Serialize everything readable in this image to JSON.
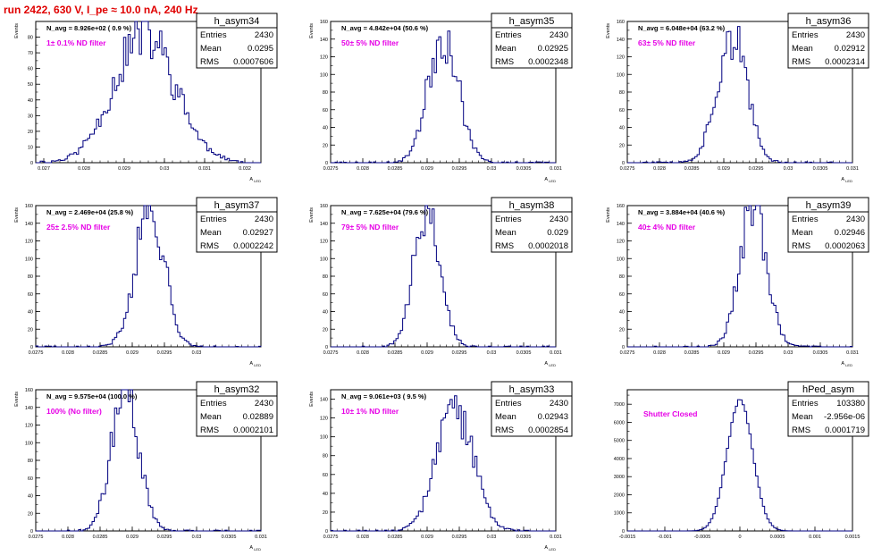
{
  "page_title": "run 2422,   630 V, I_pe ≈ 10.0 nA, 240 Hz",
  "colors": {
    "histogram": "#000080",
    "annotation": "#e600e6",
    "title": "#e00000",
    "frame": "#000000"
  },
  "chart_data": [
    {
      "type": "histogram",
      "name": "h_asym34",
      "ylabel": "Events",
      "xlabel": "A_{LED}",
      "navg": "N_avg = 8.926e+02 ( 0.9 %)",
      "filter": "1± 0.1% ND filter",
      "stats": [
        [
          "Entries",
          "2430"
        ],
        [
          "Mean",
          "0.0295"
        ],
        [
          "RMS",
          "0.0007606"
        ]
      ],
      "xlim": [
        0.0268,
        0.0324
      ],
      "ylim": [
        0,
        90
      ],
      "xticks": [
        0.027,
        0.028,
        0.029,
        0.03,
        0.031,
        0.032
      ],
      "xtick_labels": [
        "0.027",
        "0.028",
        "0.029",
        "0.03",
        "0.031",
        "0.032"
      ],
      "yticks": [
        0,
        10,
        20,
        30,
        40,
        50,
        60,
        70,
        80
      ],
      "ytick_labels": [
        "0",
        "10",
        "20",
        "30",
        "40",
        "50",
        "60",
        "70",
        "80"
      ],
      "peak": 82,
      "mean": 0.0295,
      "sigma": 0.00076,
      "seed": 11
    },
    {
      "type": "histogram",
      "name": "h_asym35",
      "ylabel": "Events",
      "xlabel": "A_{LED}",
      "navg": "N_avg = 4.842e+04 (50.6 %)",
      "filter": "50± 5% ND filter",
      "stats": [
        [
          "Entries",
          "2430"
        ],
        [
          "Mean",
          "0.02925"
        ],
        [
          "RMS",
          "0.0002348"
        ]
      ],
      "xlim": [
        0.0275,
        0.031
      ],
      "ylim": [
        0,
        160
      ],
      "xticks": [
        0.0275,
        0.028,
        0.0285,
        0.029,
        0.0295,
        0.03,
        0.0305,
        0.031
      ],
      "xtick_labels": [
        "0.0275",
        "0.028",
        "0.0285",
        "0.029",
        "0.0295",
        "0.03",
        "0.0305",
        "0.031"
      ],
      "yticks": [
        0,
        20,
        40,
        60,
        80,
        100,
        120,
        140,
        160
      ],
      "ytick_labels": [
        "0",
        "20",
        "40",
        "60",
        "80",
        "100",
        "120",
        "140",
        "160"
      ],
      "peak": 145,
      "mean": 0.02925,
      "sigma": 0.000235,
      "seed": 23
    },
    {
      "type": "histogram",
      "name": "h_asym36",
      "ylabel": "Events",
      "xlabel": "A_{LED}",
      "navg": "N_avg = 6.048e+04 (63.2 %)",
      "filter": "63± 5% ND filter",
      "stats": [
        [
          "Entries",
          "2430"
        ],
        [
          "Mean",
          "0.02912"
        ],
        [
          "RMS",
          "0.0002314"
        ]
      ],
      "xlim": [
        0.0275,
        0.031
      ],
      "ylim": [
        0,
        160
      ],
      "xticks": [
        0.0275,
        0.028,
        0.0285,
        0.029,
        0.0295,
        0.03,
        0.0305,
        0.031
      ],
      "xtick_labels": [
        "0.0275",
        "0.028",
        "0.0285",
        "0.029",
        "0.0295",
        "0.03",
        "0.0305",
        "0.031"
      ],
      "yticks": [
        0,
        20,
        40,
        60,
        80,
        100,
        120,
        140,
        160
      ],
      "ytick_labels": [
        "0",
        "20",
        "40",
        "60",
        "80",
        "100",
        "120",
        "140",
        "160"
      ],
      "peak": 146,
      "mean": 0.02912,
      "sigma": 0.00023,
      "seed": 37
    },
    {
      "type": "histogram",
      "name": "h_asym37",
      "ylabel": "Events",
      "xlabel": "A_{LED}",
      "navg": "N_avg = 2.469e+04 (25.8 %)",
      "filter": "25± 2.5% ND filter",
      "stats": [
        [
          "Entries",
          "2430"
        ],
        [
          "Mean",
          "0.02927"
        ],
        [
          "RMS",
          "0.0002242"
        ]
      ],
      "xlim": [
        0.0275,
        0.031
      ],
      "ylim": [
        0,
        160
      ],
      "xticks": [
        0.0275,
        0.028,
        0.0285,
        0.029,
        0.0295,
        0.03
      ],
      "xtick_labels": [
        "0.0275",
        "0.028",
        "0.0285",
        "0.029",
        "0.0295",
        "0.03"
      ],
      "yticks": [
        0,
        20,
        40,
        60,
        80,
        100,
        120,
        140,
        160
      ],
      "ytick_labels": [
        "0",
        "20",
        "40",
        "60",
        "80",
        "100",
        "120",
        "140",
        "160"
      ],
      "peak": 160,
      "mean": 0.02927,
      "sigma": 0.000224,
      "seed": 41
    },
    {
      "type": "histogram",
      "name": "h_asym38",
      "ylabel": "Events",
      "xlabel": "A_{LED}",
      "navg": "N_avg = 7.625e+04 (79.6 %)",
      "filter": "79± 5% ND filter",
      "stats": [
        [
          "Entries",
          "2430"
        ],
        [
          "Mean",
          "0.029"
        ],
        [
          "RMS",
          "0.0002018"
        ]
      ],
      "xlim": [
        0.0275,
        0.031
      ],
      "ylim": [
        0,
        160
      ],
      "xticks": [
        0.0275,
        0.028,
        0.0285,
        0.029,
        0.0295,
        0.03,
        0.0305,
        0.031
      ],
      "xtick_labels": [
        "0.0275",
        "0.028",
        "0.0285",
        "0.029",
        "0.0295",
        "0.03",
        "0.0305",
        "0.031"
      ],
      "yticks": [
        0,
        20,
        40,
        60,
        80,
        100,
        120,
        140,
        160
      ],
      "ytick_labels": [
        "0",
        "20",
        "40",
        "60",
        "80",
        "100",
        "120",
        "140",
        "160"
      ],
      "peak": 158,
      "mean": 0.029,
      "sigma": 0.0002,
      "seed": 53
    },
    {
      "type": "histogram",
      "name": "h_asym39",
      "ylabel": "Events",
      "xlabel": "A_{LED}",
      "navg": "N_avg = 3.884e+04 (40.6 %)",
      "filter": "40± 4% ND filter",
      "stats": [
        [
          "Entries",
          "2430"
        ],
        [
          "Mean",
          "0.02946"
        ],
        [
          "RMS",
          "0.0002063"
        ]
      ],
      "xlim": [
        0.0275,
        0.031
      ],
      "ylim": [
        0,
        160
      ],
      "xticks": [
        0.0275,
        0.028,
        0.0285,
        0.029,
        0.0295,
        0.03,
        0.0305,
        0.031
      ],
      "xtick_labels": [
        "0.0275",
        "0.028",
        "0.0285",
        "0.029",
        "0.0295",
        "0.03",
        "0.0305",
        "0.031"
      ],
      "yticks": [
        0,
        20,
        40,
        60,
        80,
        100,
        120,
        140,
        160
      ],
      "ytick_labels": [
        "0",
        "20",
        "40",
        "60",
        "80",
        "100",
        "120",
        "140",
        "160"
      ],
      "peak": 162,
      "mean": 0.02946,
      "sigma": 0.000206,
      "seed": 67
    },
    {
      "type": "histogram",
      "name": "h_asym32",
      "ylabel": "Events",
      "xlabel": "A_{LED}",
      "navg": "N_avg = 9.575e+04 (100.0 %)",
      "filter": "100% (No filter)",
      "stats": [
        [
          "Entries",
          "2430"
        ],
        [
          "Mean",
          "0.02889"
        ],
        [
          "RMS",
          "0.0002101"
        ]
      ],
      "xlim": [
        0.0275,
        0.031
      ],
      "ylim": [
        0,
        160
      ],
      "xticks": [
        0.0275,
        0.028,
        0.0285,
        0.029,
        0.0295,
        0.03,
        0.0305,
        0.031
      ],
      "xtick_labels": [
        "0.0275",
        "0.028",
        "0.0285",
        "0.029",
        "0.0295",
        "0.03",
        "0.0305",
        "0.031"
      ],
      "yticks": [
        0,
        20,
        40,
        60,
        80,
        100,
        120,
        140,
        160
      ],
      "ytick_labels": [
        "0",
        "20",
        "40",
        "60",
        "80",
        "100",
        "120",
        "140",
        "160"
      ],
      "peak": 165,
      "mean": 0.02889,
      "sigma": 0.00021,
      "seed": 71
    },
    {
      "type": "histogram",
      "name": "h_asym33",
      "ylabel": "Events",
      "xlabel": "A_{LED}",
      "navg": "N_avg = 9.061e+03 ( 9.5 %)",
      "filter": "10± 1% ND filter",
      "stats": [
        [
          "Entries",
          "2430"
        ],
        [
          "Mean",
          "0.02943"
        ],
        [
          "RMS",
          "0.0002854"
        ]
      ],
      "xlim": [
        0.0275,
        0.031
      ],
      "ylim": [
        0,
        150
      ],
      "xticks": [
        0.0275,
        0.028,
        0.0285,
        0.029,
        0.0295,
        0.03,
        0.0305,
        0.031
      ],
      "xtick_labels": [
        "0.0275",
        "0.028",
        "0.0285",
        "0.029",
        "0.0295",
        "0.03",
        "0.0305",
        "0.031"
      ],
      "yticks": [
        0,
        20,
        40,
        60,
        80,
        100,
        120,
        140
      ],
      "ytick_labels": [
        "0",
        "20",
        "40",
        "60",
        "80",
        "100",
        "120",
        "140"
      ],
      "peak": 128,
      "mean": 0.02943,
      "sigma": 0.000285,
      "seed": 83
    },
    {
      "type": "histogram",
      "name": "hPed_asym",
      "ylabel": "",
      "xlabel": "",
      "navg": "",
      "filter": "Shutter Closed",
      "stats": [
        [
          "Entries",
          "103380"
        ],
        [
          "Mean",
          "-2.956e-06"
        ],
        [
          "RMS",
          "0.0001719"
        ]
      ],
      "xlim": [
        -0.0015,
        0.0015
      ],
      "ylim": [
        0,
        7800
      ],
      "xticks": [
        -0.0015,
        -0.001,
        -0.0005,
        0,
        0.0005,
        0.001,
        0.0015
      ],
      "xtick_labels": [
        "-0.0015",
        "-0.001",
        "-0.0005",
        "0",
        "0.0005",
        "0.001",
        "0.0015"
      ],
      "yticks": [
        0,
        1000,
        2000,
        3000,
        4000,
        5000,
        6000,
        7000
      ],
      "ytick_labels": [
        "0",
        "1000",
        "2000",
        "3000",
        "4000",
        "5000",
        "6000",
        "7000"
      ],
      "peak": 7200,
      "mean": 0,
      "sigma": 0.000172,
      "seed": 97,
      "smooth": true
    }
  ]
}
